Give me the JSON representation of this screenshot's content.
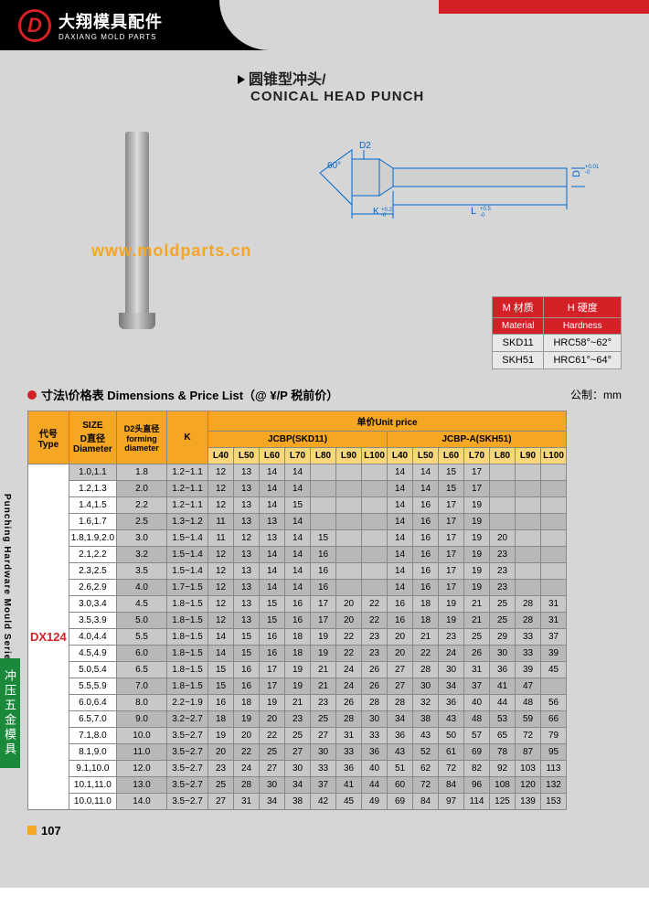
{
  "header": {
    "logo_cn": "大翔模具配件",
    "logo_en": "DAXIANG MOLD PARTS",
    "logo_letter": "D"
  },
  "title": {
    "cn": "圆锥型冲头/",
    "en": "CONICAL HEAD PUNCH"
  },
  "watermark": "www.moldparts.cn",
  "diagram": {
    "angle": "60°",
    "d2": "D2",
    "k": "K",
    "k_tol": "+0.2/-0",
    "l": "L",
    "l_tol": "+0.5/-0",
    "d": "D",
    "d_tol": "+0.01/-0"
  },
  "material": {
    "h1_cn": "M 材质",
    "h2_cn": "H 硬度",
    "h1_en": "Material",
    "h2_en": "Hardness",
    "rows": [
      [
        "SKD11",
        "HRC58°~62°"
      ],
      [
        "SKH51",
        "HRC61°~64°"
      ]
    ]
  },
  "price_title": "寸法\\价格表 Dimensions & Price List（@ ¥/P 税前价）",
  "unit": "公制：mm",
  "table": {
    "type_label": "代号\nType",
    "size_label": "SIZE\nD直径\nDiameter",
    "d2_label": "D2头直径\nforming diameter",
    "k_label": "K",
    "unit_price": "单价Unit price",
    "series1": "JCBP(SKD11)",
    "series2": "JCBP-A(SKH51)",
    "lengths": [
      "L40",
      "L50",
      "L60",
      "L70",
      "L80",
      "L90",
      "L100",
      "L40",
      "L50",
      "L60",
      "L70",
      "L80",
      "L90",
      "L100"
    ],
    "type_code": "DX124",
    "rows": [
      {
        "size": "1.0,1.1",
        "d2": "1.8",
        "k": "1.2~1.1",
        "p": [
          "12",
          "13",
          "14",
          "14",
          "",
          "",
          "",
          "14",
          "14",
          "15",
          "17",
          "",
          "",
          ""
        ]
      },
      {
        "size": "1.2,1.3",
        "d2": "2.0",
        "k": "1.2~1.1",
        "p": [
          "12",
          "13",
          "14",
          "14",
          "",
          "",
          "",
          "14",
          "14",
          "15",
          "17",
          "",
          "",
          ""
        ]
      },
      {
        "size": "1.4,1.5",
        "d2": "2.2",
        "k": "1.2~1.1",
        "p": [
          "12",
          "13",
          "14",
          "15",
          "",
          "",
          "",
          "14",
          "16",
          "17",
          "19",
          "",
          "",
          ""
        ]
      },
      {
        "size": "1.6,1.7",
        "d2": "2.5",
        "k": "1.3~1.2",
        "p": [
          "11",
          "13",
          "13",
          "14",
          "",
          "",
          "",
          "14",
          "16",
          "17",
          "19",
          "",
          "",
          ""
        ]
      },
      {
        "size": "1.8,1.9,2.0",
        "d2": "3.0",
        "k": "1.5~1.4",
        "p": [
          "11",
          "12",
          "13",
          "14",
          "15",
          "",
          "",
          "14",
          "16",
          "17",
          "19",
          "20",
          "",
          ""
        ]
      },
      {
        "size": "2.1,2.2",
        "d2": "3.2",
        "k": "1.5~1.4",
        "p": [
          "12",
          "13",
          "14",
          "14",
          "16",
          "",
          "",
          "14",
          "16",
          "17",
          "19",
          "23",
          "",
          ""
        ]
      },
      {
        "size": "2.3,2.5",
        "d2": "3.5",
        "k": "1.5~1.4",
        "p": [
          "12",
          "13",
          "14",
          "14",
          "16",
          "",
          "",
          "14",
          "16",
          "17",
          "19",
          "23",
          "",
          ""
        ]
      },
      {
        "size": "2.6,2.9",
        "d2": "4.0",
        "k": "1.7~1.5",
        "p": [
          "12",
          "13",
          "14",
          "14",
          "16",
          "",
          "",
          "14",
          "16",
          "17",
          "19",
          "23",
          "",
          ""
        ]
      },
      {
        "size": "3.0,3.4",
        "d2": "4.5",
        "k": "1.8~1.5",
        "p": [
          "12",
          "13",
          "15",
          "16",
          "17",
          "20",
          "22",
          "16",
          "18",
          "19",
          "21",
          "25",
          "28",
          "31"
        ]
      },
      {
        "size": "3.5,3.9",
        "d2": "5.0",
        "k": "1.8~1.5",
        "p": [
          "12",
          "13",
          "15",
          "16",
          "17",
          "20",
          "22",
          "16",
          "18",
          "19",
          "21",
          "25",
          "28",
          "31"
        ]
      },
      {
        "size": "4.0,4.4",
        "d2": "5.5",
        "k": "1.8~1.5",
        "p": [
          "14",
          "15",
          "16",
          "18",
          "19",
          "22",
          "23",
          "20",
          "21",
          "23",
          "25",
          "29",
          "33",
          "37"
        ]
      },
      {
        "size": "4.5,4.9",
        "d2": "6.0",
        "k": "1.8~1.5",
        "p": [
          "14",
          "15",
          "16",
          "18",
          "19",
          "22",
          "23",
          "20",
          "22",
          "24",
          "26",
          "30",
          "33",
          "39"
        ]
      },
      {
        "size": "5.0,5.4",
        "d2": "6.5",
        "k": "1.8~1.5",
        "p": [
          "15",
          "16",
          "17",
          "19",
          "21",
          "24",
          "26",
          "27",
          "28",
          "30",
          "31",
          "36",
          "39",
          "45"
        ]
      },
      {
        "size": "5.5,5.9",
        "d2": "7.0",
        "k": "1.8~1.5",
        "p": [
          "15",
          "16",
          "17",
          "19",
          "21",
          "24",
          "26",
          "27",
          "30",
          "34",
          "37",
          "41",
          "47",
          ""
        ]
      },
      {
        "size": "6.0,6.4",
        "d2": "8.0",
        "k": "2.2~1.9",
        "p": [
          "16",
          "18",
          "19",
          "21",
          "23",
          "26",
          "28",
          "28",
          "32",
          "36",
          "40",
          "44",
          "48",
          "56"
        ]
      },
      {
        "size": "6.5,7.0",
        "d2": "9.0",
        "k": "3.2~2.7",
        "p": [
          "18",
          "19",
          "20",
          "23",
          "25",
          "28",
          "30",
          "34",
          "38",
          "43",
          "48",
          "53",
          "59",
          "66"
        ]
      },
      {
        "size": "7.1,8.0",
        "d2": "10.0",
        "k": "3.5~2.7",
        "p": [
          "19",
          "20",
          "22",
          "25",
          "27",
          "31",
          "33",
          "36",
          "43",
          "50",
          "57",
          "65",
          "72",
          "79"
        ]
      },
      {
        "size": "8.1,9.0",
        "d2": "11.0",
        "k": "3.5~2.7",
        "p": [
          "20",
          "22",
          "25",
          "27",
          "30",
          "33",
          "36",
          "43",
          "52",
          "61",
          "69",
          "78",
          "87",
          "95"
        ]
      },
      {
        "size": "9.1,10.0",
        "d2": "12.0",
        "k": "3.5~2.7",
        "p": [
          "23",
          "24",
          "27",
          "30",
          "33",
          "36",
          "40",
          "51",
          "62",
          "72",
          "82",
          "92",
          "103",
          "113"
        ]
      },
      {
        "size": "10.1,11.0",
        "d2": "13.0",
        "k": "3.5~2.7",
        "p": [
          "25",
          "28",
          "30",
          "34",
          "37",
          "41",
          "44",
          "60",
          "72",
          "84",
          "96",
          "108",
          "120",
          "132"
        ]
      },
      {
        "size": "10.0,11.0",
        "d2": "14.0",
        "k": "3.5~2.7",
        "p": [
          "27",
          "31",
          "34",
          "38",
          "42",
          "45",
          "49",
          "69",
          "84",
          "97",
          "114",
          "125",
          "139",
          "153"
        ]
      }
    ]
  },
  "side_tab": "冲压五金模具",
  "side_text": "Punching Hardware Mould Series",
  "page_num": "107"
}
